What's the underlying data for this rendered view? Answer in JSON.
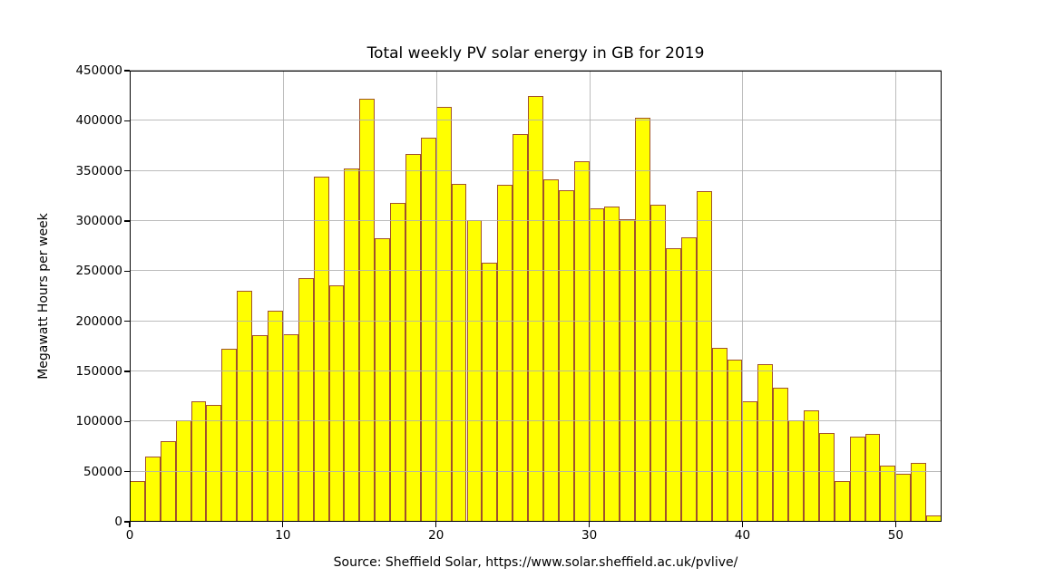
{
  "figure": {
    "background": "#ffffff",
    "text_color": "#000000"
  },
  "chart_data": {
    "type": "bar",
    "title": "Total weekly PV solar energy in GB for 2019",
    "xlabel": "Source: Sheffield Solar, https://www.solar.sheffield.ac.uk/pvlive/",
    "ylabel": "Megawatt Hours per week",
    "x": [
      0,
      1,
      2,
      3,
      4,
      5,
      6,
      7,
      8,
      9,
      10,
      11,
      12,
      13,
      14,
      15,
      16,
      17,
      18,
      19,
      20,
      21,
      22,
      23,
      24,
      25,
      26,
      27,
      28,
      29,
      30,
      31,
      32,
      33,
      34,
      35,
      36,
      37,
      38,
      39,
      40,
      41,
      42,
      43,
      44,
      45,
      46,
      47,
      48,
      49,
      50,
      51,
      52
    ],
    "values": [
      41000,
      65000,
      80500,
      101000,
      120000,
      116500,
      173000,
      230500,
      186000,
      211000,
      187000,
      243500,
      344000,
      235500,
      352500,
      422000,
      282500,
      318500,
      366500,
      383000,
      414000,
      337000,
      301000,
      258500,
      336000,
      386500,
      425000,
      342000,
      331000,
      360000,
      313000,
      314500,
      302000,
      403000,
      316500,
      273000,
      284000,
      329500,
      173500,
      162000,
      120000,
      157000,
      134000,
      101500,
      111000,
      88500,
      40500,
      85000,
      88000,
      56000,
      48000,
      59000,
      6500
    ],
    "xlim": [
      0,
      53
    ],
    "ylim": [
      0,
      450000
    ],
    "xticks": [
      0,
      10,
      20,
      30,
      40,
      50
    ],
    "yticks": [
      0,
      50000,
      100000,
      150000,
      200000,
      250000,
      300000,
      350000,
      400000,
      450000
    ],
    "grid": true,
    "grid_over_bars": true,
    "legend": "none",
    "bar_fill_color": "#ffff00",
    "bar_edge_color": "#a0522d",
    "grid_color": "#b0b0b0",
    "spine_color": "#000000"
  }
}
